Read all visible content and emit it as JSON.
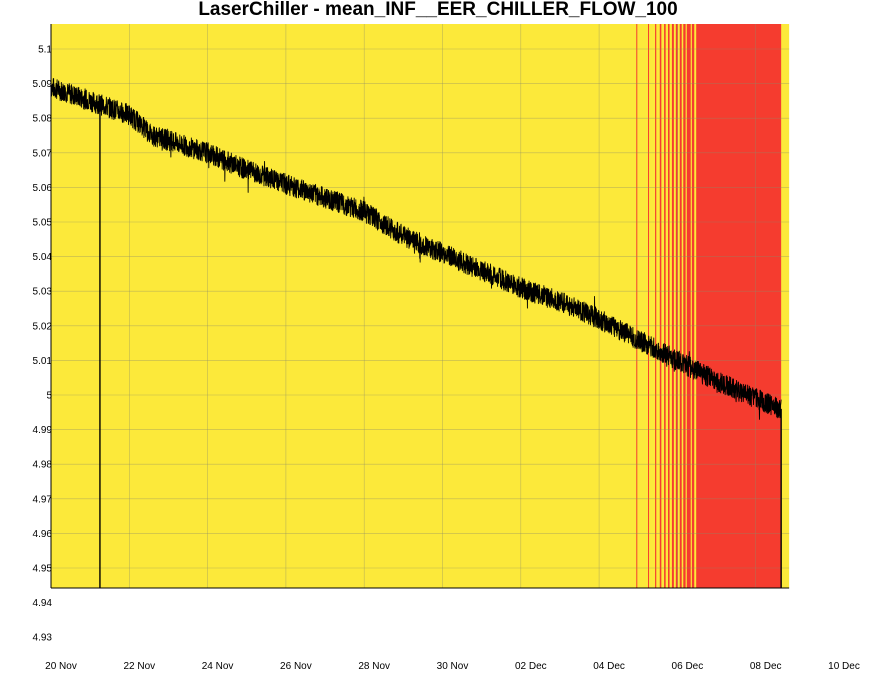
{
  "chart_data": {
    "type": "line",
    "title": "LaserChiller - mean_INF__EER_CHILLER_FLOW_100",
    "xlabel": "",
    "ylabel": "",
    "x_tick_labels": [
      "20 Nov",
      "22 Nov",
      "24 Nov",
      "26 Nov",
      "28 Nov",
      "30 Nov",
      "02 Dec",
      "04 Dec",
      "06 Dec",
      "08 Dec",
      "10 Dec"
    ],
    "y_tick_labels": [
      "4.93",
      "4.94",
      "4.95",
      "4.96",
      "4.97",
      "4.98",
      "4.99",
      "5",
      "5.01",
      "5.02",
      "5.03",
      "5.04",
      "5.05",
      "5.06",
      "5.07",
      "5.08",
      "5.09",
      "5.1"
    ],
    "xlim_days": [
      0,
      20
    ],
    "data_end_day": 18.65,
    "ylim": [
      4.93,
      5.1
    ],
    "grid": true,
    "background_color": "#fce93a",
    "alarm_color": "#f53c2f",
    "line_color": "#000000",
    "trend": [
      {
        "day": 0.0,
        "value": 5.089
      },
      {
        "day": 1.0,
        "value": 5.085
      },
      {
        "day": 2.0,
        "value": 5.081
      },
      {
        "day": 2.6,
        "value": 5.075
      },
      {
        "day": 4.0,
        "value": 5.07
      },
      {
        "day": 5.0,
        "value": 5.065
      },
      {
        "day": 6.0,
        "value": 5.061
      },
      {
        "day": 7.0,
        "value": 5.057
      },
      {
        "day": 8.0,
        "value": 5.053
      },
      {
        "day": 9.0,
        "value": 5.046
      },
      {
        "day": 10.0,
        "value": 5.041
      },
      {
        "day": 11.0,
        "value": 5.036
      },
      {
        "day": 12.0,
        "value": 5.031
      },
      {
        "day": 13.0,
        "value": 5.027
      },
      {
        "day": 14.0,
        "value": 5.022
      },
      {
        "day": 15.0,
        "value": 5.016
      },
      {
        "day": 16.0,
        "value": 5.01
      },
      {
        "day": 17.0,
        "value": 5.004
      },
      {
        "day": 18.0,
        "value": 4.999
      },
      {
        "day": 18.65,
        "value": 4.996
      }
    ],
    "noise_amplitude": 0.003,
    "spikes_down": [
      {
        "day": 1.25,
        "value": 4.95
      },
      {
        "day": 18.65,
        "value": 4.95
      }
    ],
    "alarm_bands": [
      {
        "start": 14.95,
        "end": 14.97
      },
      {
        "start": 15.25,
        "end": 15.27
      },
      {
        "start": 15.43,
        "end": 15.46
      },
      {
        "start": 15.55,
        "end": 15.59
      },
      {
        "start": 15.66,
        "end": 15.7
      },
      {
        "start": 15.76,
        "end": 15.8
      },
      {
        "start": 15.86,
        "end": 15.91
      },
      {
        "start": 15.96,
        "end": 16.01
      },
      {
        "start": 16.06,
        "end": 16.11
      },
      {
        "start": 16.15,
        "end": 16.21
      },
      {
        "start": 16.24,
        "end": 16.34
      },
      {
        "start": 16.37,
        "end": 16.43
      },
      {
        "start": 16.48,
        "end": 18.65
      }
    ]
  }
}
